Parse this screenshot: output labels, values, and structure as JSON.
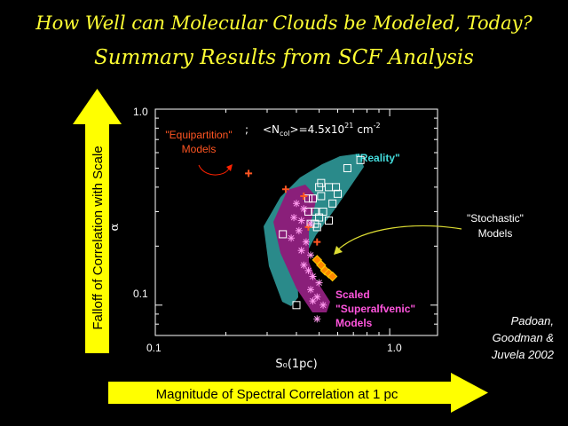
{
  "slide": {
    "title_line1": "How Well can Molecular Clouds be Modeled, Today?",
    "title_line2": "Summary Results from SCF Analysis",
    "y_arrow_label": "Falloff of Correlation with Scale",
    "x_arrow_label": "Magnitude of Spectral Correlation at 1 pc",
    "credit": [
      "Padoan,",
      "Goodman &",
      "Juvela 2002"
    ]
  },
  "colors": {
    "title": "#ffff33",
    "arrow": "#ffff00",
    "reality": "#2a8a8a",
    "superalfvenic": "#8a1f7a",
    "equipartition": "#ff5522",
    "stochastic": "#ff8800",
    "reality_label": "#44dddd",
    "superalfvenic_label": "#ff55dd"
  },
  "chart_data": {
    "type": "scatter",
    "xlabel": "S₀(1pc)",
    "ylabel": "α",
    "xscale": "log",
    "yscale": "log",
    "xlim": [
      0.1,
      1.6
    ],
    "ylim": [
      0.07,
      1.0
    ],
    "x_ticks": [
      "0.1",
      "1.0"
    ],
    "y_ticks": [
      "1.0",
      "0.1"
    ],
    "annotation": "\"Equipartition\" Models  ;  <N_col>=4.5x10^21 cm^-2",
    "annotation_parts": {
      "models": "\"Equipartition\"",
      "models2": "Models",
      "semi": ";",
      "ncol": "<N",
      "sub": "col",
      "eq": ">=4.5x10",
      "exp1": "21",
      "unit": "cm",
      "exp2": "-2"
    },
    "series": [
      {
        "name": "\"Reality\"",
        "marker": "square",
        "x": [
          0.66,
          0.75,
          0.59,
          0.5,
          0.55,
          0.6,
          0.47,
          0.51,
          0.57,
          0.45,
          0.48,
          0.52,
          0.5,
          0.46,
          0.55,
          0.49,
          0.48,
          0.35,
          0.4,
          0.45,
          0.51
        ],
        "y": [
          0.5,
          0.55,
          0.4,
          0.4,
          0.4,
          0.37,
          0.35,
          0.36,
          0.33,
          0.3,
          0.3,
          0.3,
          0.28,
          0.26,
          0.27,
          0.25,
          0.26,
          0.23,
          0.1,
          0.35,
          0.42
        ]
      },
      {
        "name": "\"Stochastic\" Models",
        "marker": "diamond",
        "x": [
          0.49,
          0.51,
          0.53,
          0.55,
          0.57
        ],
        "y": [
          0.17,
          0.16,
          0.15,
          0.145,
          0.14
        ]
      },
      {
        "name": "\"Equipartition\" Models",
        "marker": "plus",
        "x": [
          0.25,
          0.36,
          0.45,
          0.49,
          0.43
        ],
        "y": [
          0.47,
          0.39,
          0.25,
          0.21,
          0.36
        ]
      },
      {
        "name": "Scaled \"Superalfvenic\" Models",
        "marker": "asterisk",
        "x": [
          0.4,
          0.43,
          0.39,
          0.42,
          0.46,
          0.41,
          0.38,
          0.44,
          0.42,
          0.46,
          0.43,
          0.45,
          0.47,
          0.5,
          0.46,
          0.49,
          0.52,
          0.47,
          0.49
        ],
        "y": [
          0.33,
          0.31,
          0.28,
          0.27,
          0.26,
          0.24,
          0.22,
          0.21,
          0.19,
          0.18,
          0.16,
          0.15,
          0.14,
          0.13,
          0.12,
          0.11,
          0.1,
          0.105,
          0.085
        ]
      }
    ],
    "region_labels": {
      "reality": "\"Reality\"",
      "stochastic_1": "\"Stochastic\"",
      "stochastic_2": "Models",
      "super_1": "Scaled",
      "super_2": "\"Superalfvenic\"",
      "super_3": "Models"
    }
  }
}
